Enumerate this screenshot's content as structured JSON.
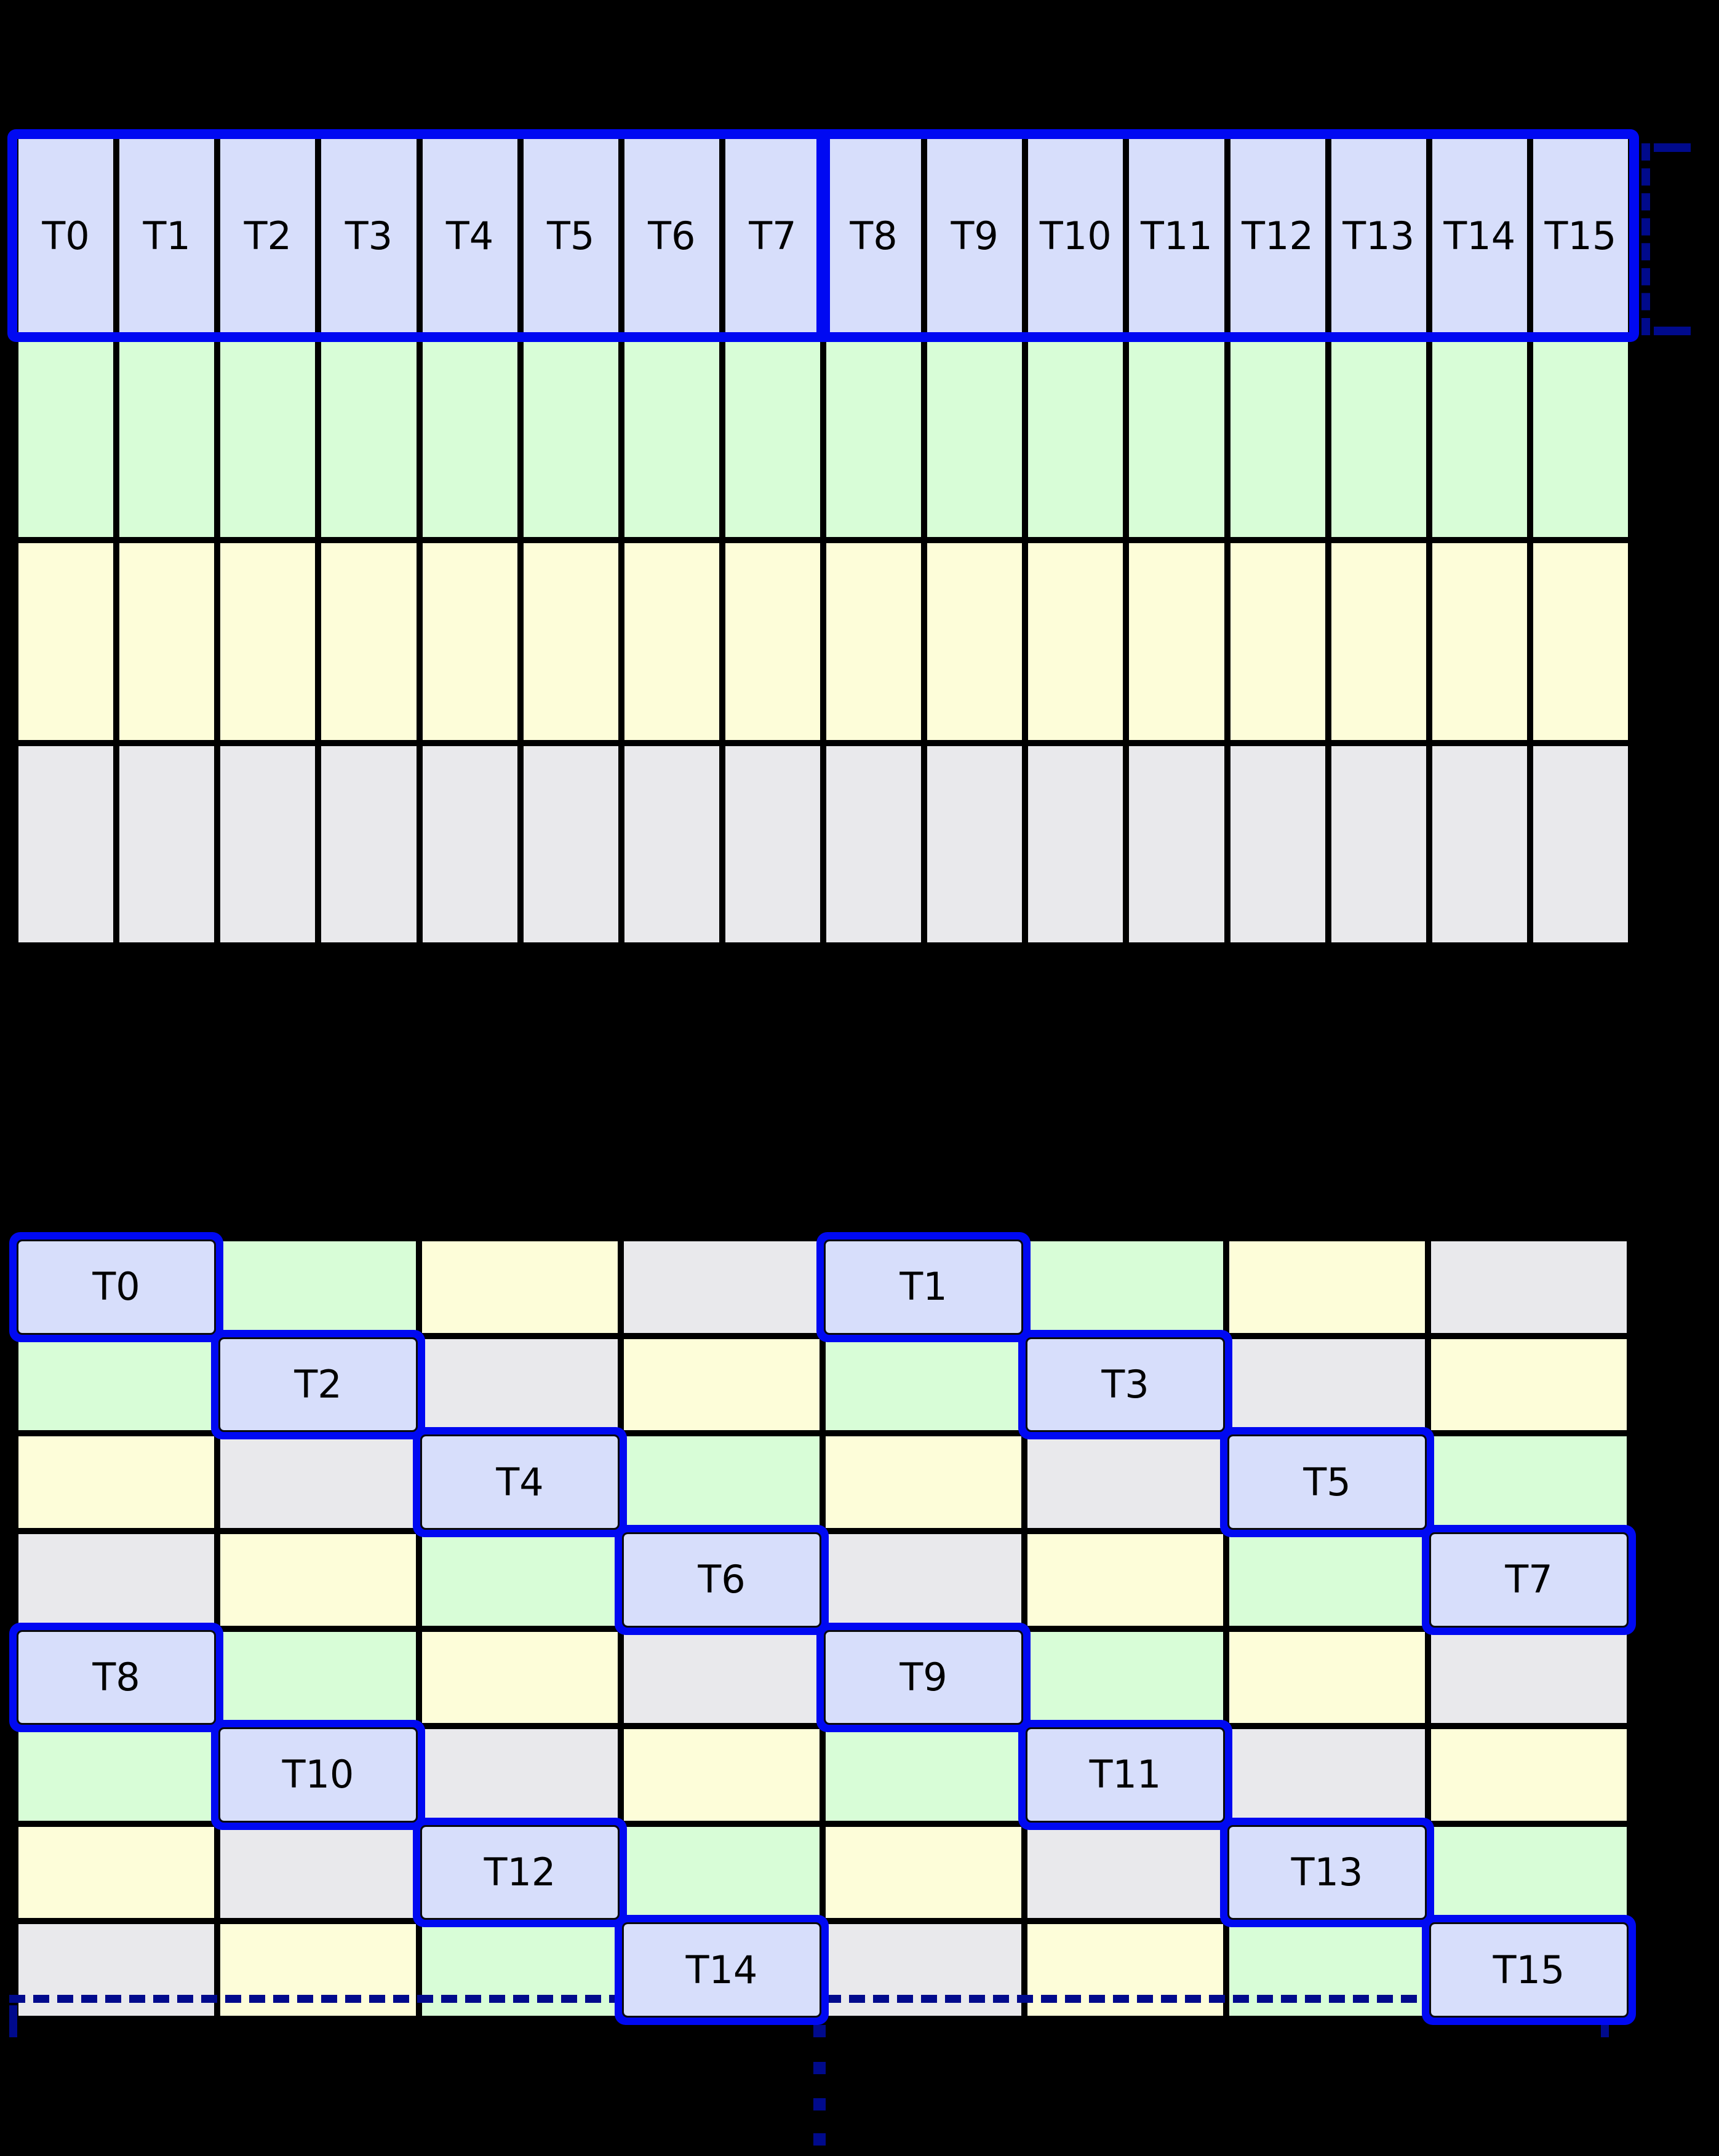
{
  "colors": {
    "background": "#000000",
    "gridline": "#000000",
    "lavender": "#d7defb",
    "green": "#d8fdd7",
    "yellow": "#fdfdd9",
    "gray": "#e9e9ec",
    "highlight_blue": "#0009f2",
    "navy": "#000a8c",
    "text": "#000000"
  },
  "top_grid": {
    "columns": 16,
    "rows": 4,
    "row_colors": [
      "lavender",
      "green",
      "yellow",
      "gray"
    ],
    "thread_labels": [
      "T0",
      "T1",
      "T2",
      "T3",
      "T4",
      "T5",
      "T6",
      "T7",
      "T8",
      "T9",
      "T10",
      "T11",
      "T12",
      "T13",
      "T14",
      "T15"
    ],
    "highlight": {
      "outlined_row": 0,
      "group_split_after_column": 7
    }
  },
  "bottom_grid": {
    "columns": 8,
    "rows": 8,
    "cells": [
      [
        {
          "color": "lavender",
          "label": "T0"
        },
        {
          "color": "green"
        },
        {
          "color": "yellow"
        },
        {
          "color": "gray"
        },
        {
          "color": "lavender",
          "label": "T1"
        },
        {
          "color": "green"
        },
        {
          "color": "yellow"
        },
        {
          "color": "gray"
        }
      ],
      [
        {
          "color": "green"
        },
        {
          "color": "lavender",
          "label": "T2"
        },
        {
          "color": "gray"
        },
        {
          "color": "yellow"
        },
        {
          "color": "green"
        },
        {
          "color": "lavender",
          "label": "T3"
        },
        {
          "color": "gray"
        },
        {
          "color": "yellow"
        }
      ],
      [
        {
          "color": "yellow"
        },
        {
          "color": "gray"
        },
        {
          "color": "lavender",
          "label": "T4"
        },
        {
          "color": "green"
        },
        {
          "color": "yellow"
        },
        {
          "color": "gray"
        },
        {
          "color": "lavender",
          "label": "T5"
        },
        {
          "color": "green"
        }
      ],
      [
        {
          "color": "gray"
        },
        {
          "color": "yellow"
        },
        {
          "color": "green"
        },
        {
          "color": "lavender",
          "label": "T6"
        },
        {
          "color": "gray"
        },
        {
          "color": "yellow"
        },
        {
          "color": "green"
        },
        {
          "color": "lavender",
          "label": "T7"
        }
      ],
      [
        {
          "color": "lavender",
          "label": "T8"
        },
        {
          "color": "green"
        },
        {
          "color": "yellow"
        },
        {
          "color": "gray"
        },
        {
          "color": "lavender",
          "label": "T9"
        },
        {
          "color": "green"
        },
        {
          "color": "yellow"
        },
        {
          "color": "gray"
        }
      ],
      [
        {
          "color": "green"
        },
        {
          "color": "lavender",
          "label": "T10"
        },
        {
          "color": "gray"
        },
        {
          "color": "yellow"
        },
        {
          "color": "green"
        },
        {
          "color": "lavender",
          "label": "T11"
        },
        {
          "color": "gray"
        },
        {
          "color": "yellow"
        }
      ],
      [
        {
          "color": "yellow"
        },
        {
          "color": "gray"
        },
        {
          "color": "lavender",
          "label": "T12"
        },
        {
          "color": "green"
        },
        {
          "color": "yellow"
        },
        {
          "color": "gray"
        },
        {
          "color": "lavender",
          "label": "T13"
        },
        {
          "color": "green"
        }
      ],
      [
        {
          "color": "gray"
        },
        {
          "color": "yellow"
        },
        {
          "color": "green"
        },
        {
          "color": "lavender",
          "label": "T14"
        },
        {
          "color": "gray"
        },
        {
          "color": "yellow"
        },
        {
          "color": "green"
        },
        {
          "color": "lavender",
          "label": "T15"
        }
      ]
    ]
  },
  "annotations": {
    "row_bracket": {
      "side": "right",
      "style": "dashed",
      "color": "navy"
    },
    "bottom_bracket": {
      "side": "bottom",
      "style": "dashed",
      "color": "navy"
    },
    "vertical_ellipsis": {
      "dot_count": 4,
      "color": "navy"
    }
  }
}
